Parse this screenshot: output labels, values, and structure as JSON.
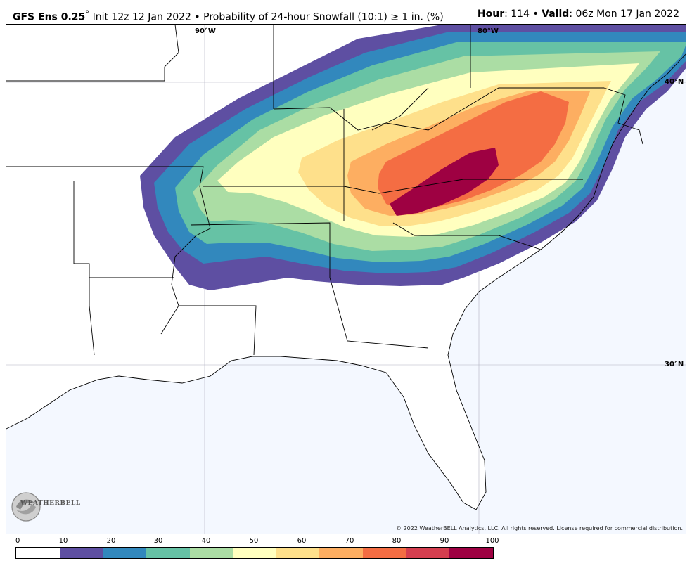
{
  "header": {
    "model": "GFS Ens 0.25",
    "degree": "°",
    "init": "Init 12z 12 Jan 2022",
    "bullet": "•",
    "product": "Probability of 24-hour Snowfall (10:1) ≥ 1 in. (%)",
    "hour_label": "Hour",
    "hour_value": ": 114",
    "valid_label": "Valid",
    "valid_value": ": 06z Mon 17 Jan 2022"
  },
  "map": {
    "labels": {
      "lon90": "90°W",
      "lon80": "80°W",
      "lat40": "40°N",
      "lat30": "30°N"
    },
    "copyright": "© 2022 WeatherBELL Analytics, LLC. All rights reserved. License required for commercial distribution.",
    "logo_text": "WEATHERBELL",
    "colors": {
      "ocean": "#f4f8ff",
      "land": "#ffffff",
      "borders": "#000000"
    }
  },
  "legend": {
    "ticks": [
      "0",
      "10",
      "20",
      "30",
      "40",
      "50",
      "60",
      "70",
      "80",
      "90",
      "100"
    ],
    "colors": [
      "#ffffff",
      "#5e4fa2",
      "#3288bd",
      "#66c2a5",
      "#abdda4",
      "#ffffbf",
      "#fee08b",
      "#fdae61",
      "#f46d43",
      "#d53e4f",
      "#9e0142"
    ]
  }
}
